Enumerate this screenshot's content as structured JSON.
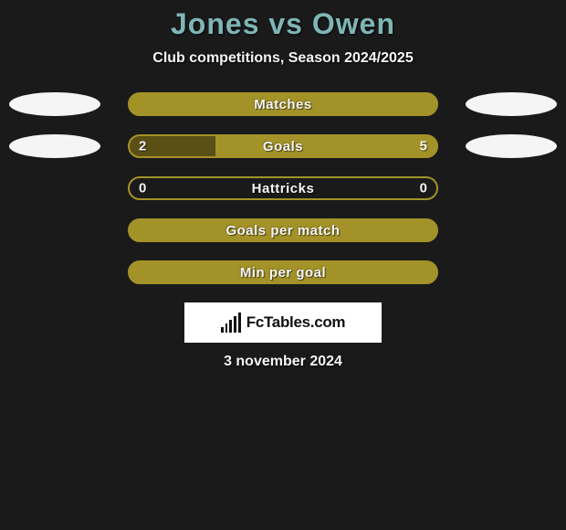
{
  "background_color": "#1a1a1a",
  "title": {
    "player1": "Jones",
    "vs": "vs",
    "player2": "Owen",
    "color": "#7fb5b5",
    "fontsize": 32
  },
  "subtitle": {
    "text": "Club competitions, Season 2024/2025",
    "color": "#f5f5f5",
    "fontsize": 16
  },
  "accent_color": "#a39228",
  "ellipse_color": "#f5f5f5",
  "stat_rows": [
    {
      "label": "Matches",
      "show_ellipses": true,
      "show_values": false,
      "left_value": "",
      "right_value": "",
      "left_fill_pct": 0,
      "right_fill_pct": 100,
      "bar_bg": "#a39228",
      "border_color": "#a39228"
    },
    {
      "label": "Goals",
      "show_ellipses": true,
      "show_values": true,
      "left_value": "2",
      "right_value": "5",
      "left_fill_pct": 28,
      "right_fill_pct": 72,
      "bar_bg": "#a39228",
      "border_color": "#a39228",
      "left_fill_color": "#5a5016"
    },
    {
      "label": "Hattricks",
      "show_ellipses": false,
      "show_values": true,
      "left_value": "0",
      "right_value": "0",
      "left_fill_pct": 0,
      "right_fill_pct": 0,
      "bar_bg": "transparent",
      "border_color": "#a39228"
    },
    {
      "label": "Goals per match",
      "show_ellipses": false,
      "show_values": false,
      "left_value": "",
      "right_value": "",
      "left_fill_pct": 0,
      "right_fill_pct": 100,
      "bar_bg": "#a39228",
      "border_color": "#a39228"
    },
    {
      "label": "Min per goal",
      "show_ellipses": false,
      "show_values": false,
      "left_value": "",
      "right_value": "",
      "left_fill_pct": 0,
      "right_fill_pct": 100,
      "bar_bg": "#a39228",
      "border_color": "#a39228"
    }
  ],
  "logo": {
    "text": "FcTables.com",
    "bg": "#ffffff",
    "text_color": "#111111",
    "icon_bars": [
      6,
      10,
      14,
      18,
      22
    ]
  },
  "date": {
    "text": "3 november 2024",
    "color": "#f5f5f5",
    "fontsize": 16
  }
}
